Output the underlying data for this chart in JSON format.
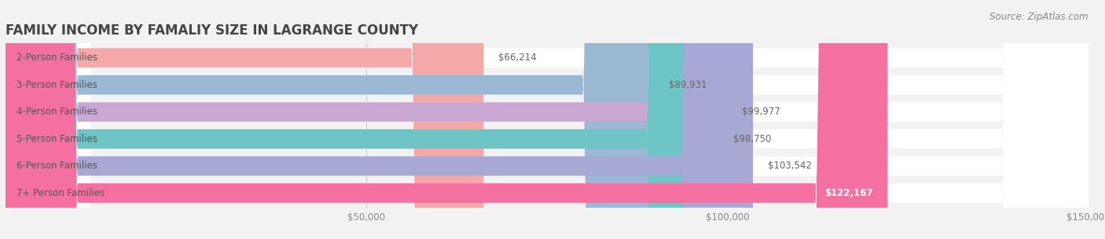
{
  "title": "FAMILY INCOME BY FAMALIY SIZE IN LAGRANGE COUNTY",
  "source": "Source: ZipAtlas.com",
  "categories": [
    "2-Person Families",
    "3-Person Families",
    "4-Person Families",
    "5-Person Families",
    "6-Person Families",
    "7+ Person Families"
  ],
  "values": [
    66214,
    89931,
    99977,
    98750,
    103542,
    122167
  ],
  "bar_colors": [
    "#f4a9a8",
    "#9bb8d4",
    "#c9a8d4",
    "#6ec5c5",
    "#a8a8d4",
    "#f470a0"
  ],
  "value_labels": [
    "$66,214",
    "$89,931",
    "$99,977",
    "$98,750",
    "$103,542",
    "$122,167"
  ],
  "xlim": [
    0,
    150000
  ],
  "xticks": [
    50000,
    100000,
    150000
  ],
  "xtick_labels": [
    "$50,000",
    "$100,000",
    "$150,000"
  ],
  "background_color": "#f2f2f2",
  "bar_height": 0.72,
  "title_fontsize": 12,
  "label_fontsize": 8.5,
  "value_fontsize": 8.5,
  "source_fontsize": 8.5
}
